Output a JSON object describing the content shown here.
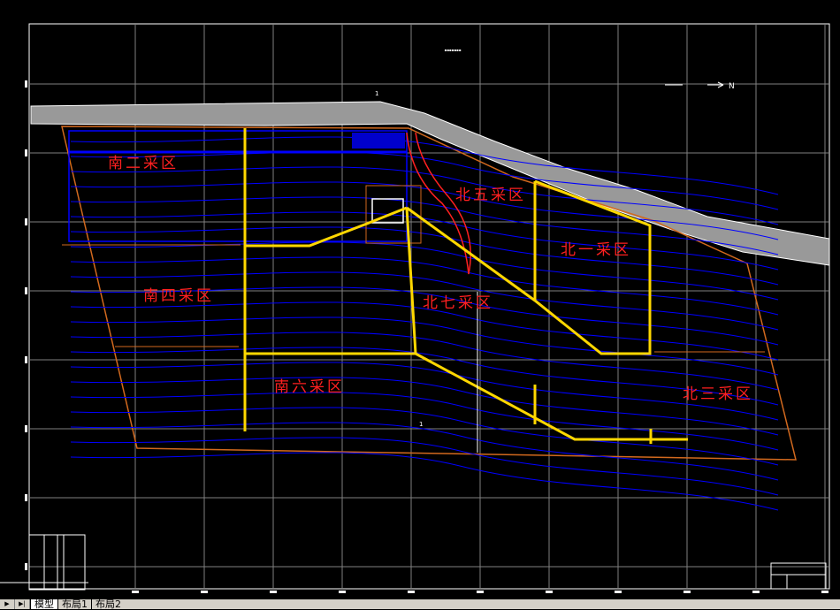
{
  "drawing": {
    "zones": [
      {
        "label": "南二采区"
      },
      {
        "label": "南四采区"
      },
      {
        "label": "南六采区"
      },
      {
        "label": "北五采区"
      },
      {
        "label": "北一采区"
      },
      {
        "label": "北七采区"
      },
      {
        "label": "北三采区"
      }
    ],
    "north_label": "N",
    "section_marks": [
      "1",
      "1"
    ],
    "colors": {
      "background": "#000000",
      "contour": "#0000ff",
      "boundary": "#d2691e",
      "roadway": "#ffd700",
      "label": "#ff2020",
      "grid": "#808080"
    }
  },
  "layout_tabs": [
    {
      "label": "模型",
      "active": true
    },
    {
      "label": "布局1",
      "active": false
    },
    {
      "label": "布局2",
      "active": false
    }
  ]
}
